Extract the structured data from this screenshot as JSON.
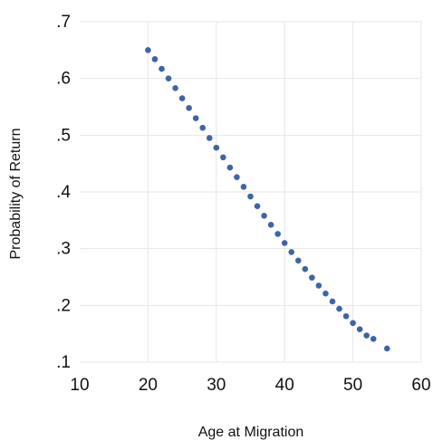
{
  "chart_data": {
    "type": "scatter",
    "title": "",
    "xlabel": "Age at Migration",
    "ylabel": "Probability of Return",
    "xlim": [
      10,
      60
    ],
    "ylim": [
      0.1,
      0.7
    ],
    "x_ticks": [
      10,
      20,
      30,
      40,
      50,
      60
    ],
    "x_tick_labels": [
      "10",
      "20",
      "30",
      "40",
      "50",
      "60"
    ],
    "y_ticks": [
      0.1,
      0.2,
      0.3,
      0.4,
      0.5,
      0.6,
      0.7
    ],
    "y_tick_labels": [
      ".1",
      ".2",
      ".3",
      ".4",
      ".5",
      ".6",
      ".7"
    ],
    "grid": true,
    "legend": "none",
    "colors": {
      "marker": "#3e64a8",
      "grid": "#e6e6e6",
      "text": "#111111"
    },
    "series": [
      {
        "x": [
          20,
          21,
          22,
          23,
          24,
          25,
          26,
          27,
          28,
          29,
          30,
          31,
          32,
          33,
          34,
          35,
          36,
          37,
          38,
          39,
          40,
          41,
          42,
          43,
          44,
          45,
          46,
          47,
          48,
          49,
          50,
          51,
          52,
          53,
          55
        ],
        "y": [
          0.65,
          0.634,
          0.617,
          0.6,
          0.583,
          0.565,
          0.548,
          0.53,
          0.513,
          0.495,
          0.478,
          0.461,
          0.443,
          0.426,
          0.409,
          0.392,
          0.375,
          0.358,
          0.342,
          0.326,
          0.31,
          0.294,
          0.279,
          0.264,
          0.249,
          0.235,
          0.221,
          0.207,
          0.194,
          0.181,
          0.169,
          0.158,
          0.147,
          0.141,
          0.124
        ]
      }
    ]
  }
}
